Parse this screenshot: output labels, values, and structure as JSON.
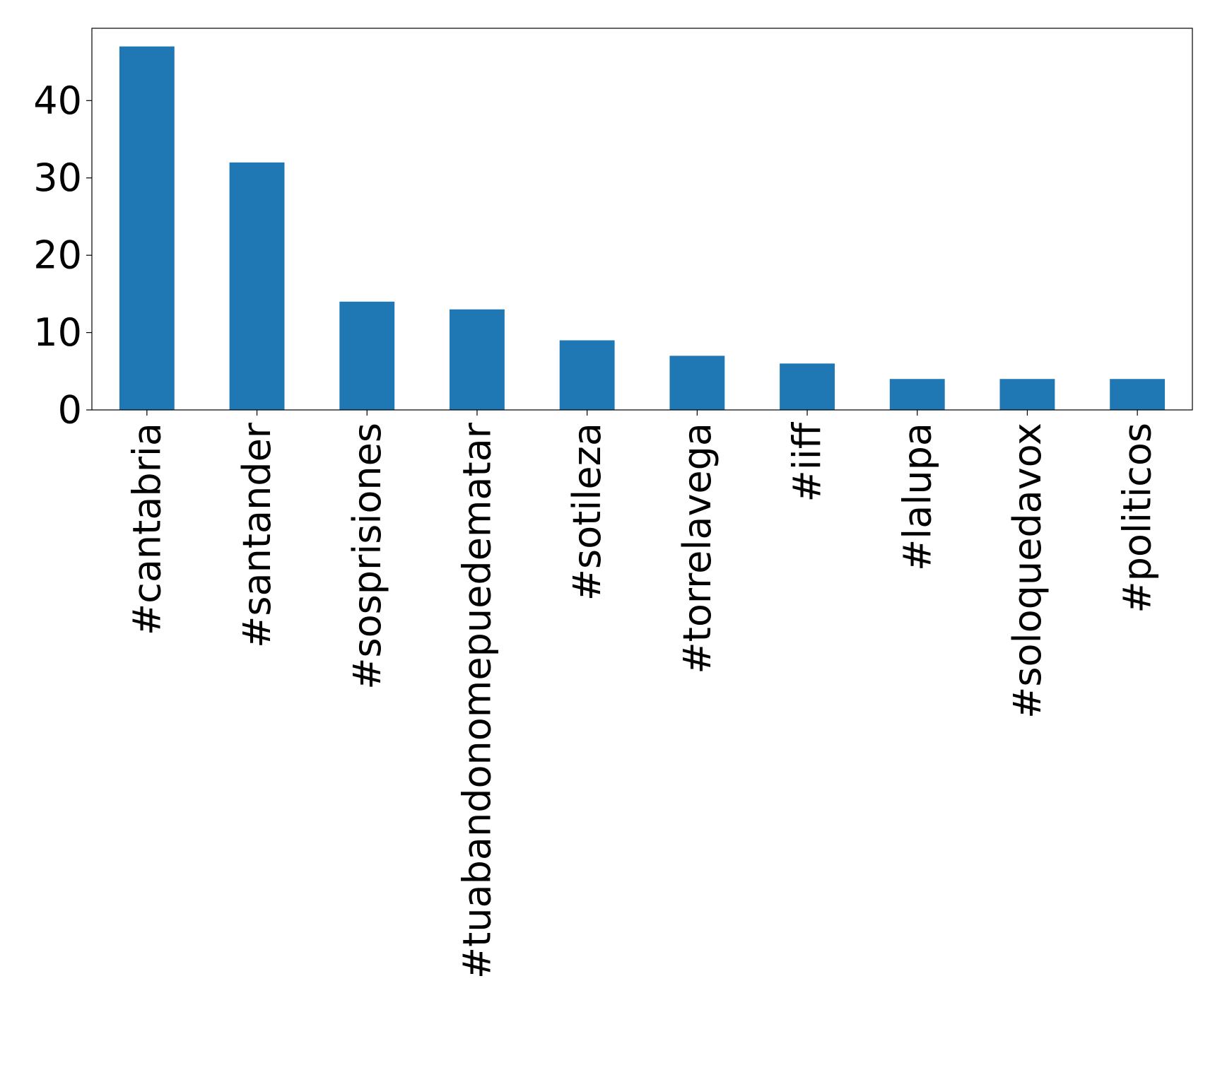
{
  "chart_data": {
    "type": "bar",
    "title": "",
    "xlabel": "",
    "ylabel": "",
    "categories": [
      "#cantabria",
      "#santander",
      "#sosprisiones",
      "#tuabandonomepuedematar",
      "#sotileza",
      "#torrelavega",
      "#iiff",
      "#lalupa",
      "#soloquedavox",
      "#politicos"
    ],
    "values": [
      47,
      32,
      14,
      13,
      9,
      7,
      6,
      4,
      4,
      4
    ],
    "ylim": [
      0,
      49.35
    ],
    "yticks": [
      0,
      10,
      20,
      30,
      40
    ],
    "bar_color": "#1f77b4",
    "grid": false,
    "legend": "none"
  }
}
